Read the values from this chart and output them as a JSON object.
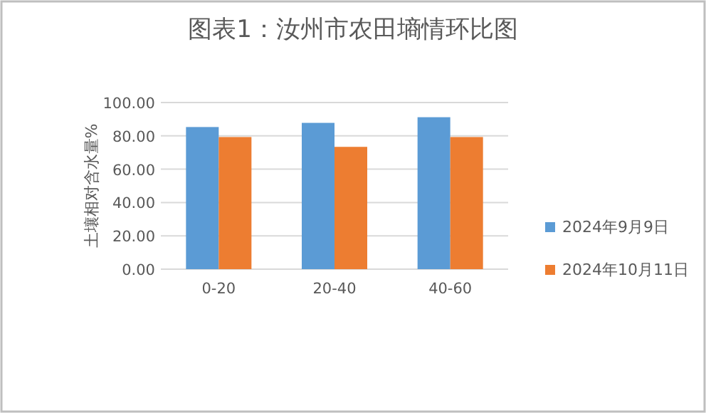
{
  "chart_data": {
    "type": "bar",
    "title": "图表1：汝州市农田墒情环比图",
    "ylabel": "土壤相对含水量%",
    "categories": [
      "0-20",
      "20-40",
      "40-60"
    ],
    "series": [
      {
        "name": "2024年9月9日",
        "color": "#5b9bd5",
        "values": [
          85.3,
          87.8,
          91.2
        ]
      },
      {
        "name": "2024年10月11日",
        "color": "#ed7d31",
        "values": [
          79.3,
          73.4,
          79.3
        ]
      }
    ],
    "ylim": [
      0,
      100
    ],
    "yticks": [
      {
        "value": 0,
        "label": "0.00"
      },
      {
        "value": 20,
        "label": "20.00"
      },
      {
        "value": 40,
        "label": "40.00"
      },
      {
        "value": 60,
        "label": "60.00"
      },
      {
        "value": 80,
        "label": "80.00"
      },
      {
        "value": 100,
        "label": "100.00"
      }
    ],
    "grid": "y",
    "legend": "right"
  }
}
